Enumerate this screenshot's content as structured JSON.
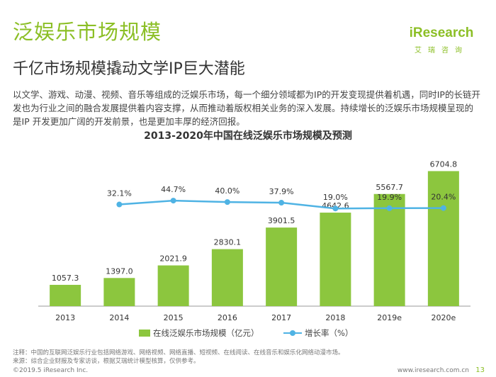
{
  "header": {
    "title": "泛娱乐市场规模",
    "subtitle": "千亿市场规模撬动文学IP巨大潜能",
    "logo_text": "iResearch",
    "logo_sub": "艾瑞咨询"
  },
  "intro_text": "以文学、游戏、动漫、视频、音乐等组成的泛娱乐市场，每一个细分领域都为IP的开发变现提供着机遇，同时IP的长链开发也为行业之间的融合发展提供着内容支撑，从而推动着版权相关业务的深入发展。持续增长的泛娱乐市场规模呈现的是IP 开发更加广阔的开发前景，也是更加丰厚的经济回报。",
  "chart_data": {
    "type": "bar",
    "title": "2013-2020年中国在线泛娱乐市场规模及预测",
    "categories": [
      "2013",
      "2014",
      "2015",
      "2016",
      "2017",
      "2018",
      "2019e",
      "2020e"
    ],
    "series": [
      {
        "name": "在线泛娱乐市场规模（亿元）",
        "type": "bar",
        "values": [
          1057.3,
          1397.0,
          2021.9,
          2830.1,
          3901.5,
          4642.6,
          5567.7,
          6704.8
        ],
        "labels": [
          "1057.3",
          "1397.0",
          "2021.9",
          "2830.1",
          "3901.5",
          "4642.6",
          "5567.7",
          "6704.8"
        ],
        "color": "#8cc63e"
      },
      {
        "name": "增长率（%）",
        "type": "line",
        "values": [
          32.1,
          44.7,
          40.0,
          37.9,
          19.0,
          19.9,
          20.4
        ],
        "x": [
          "2014",
          "2015",
          "2016",
          "2017",
          "2018",
          "2019e",
          "2020e"
        ],
        "labels": [
          "32.1%",
          "44.7%",
          "40.0%",
          "37.9%",
          "19.0%",
          "19.9%",
          "20.4%"
        ],
        "color": "#4fb3e4"
      }
    ],
    "bar_ylim": [
      0,
      7600
    ],
    "line_ylim": [
      -300,
      200
    ],
    "grid": false,
    "legend_position": "bottom"
  },
  "notes": {
    "note": "注释：中国的互联网泛娱乐行业包括网络游戏、网络视频、网络直播、短视频、在线阅读、在线音乐和娱乐化网络动漫市场。",
    "source": "来源：综合企业财报及专家访谈，根据艾瑞统计模型核算，仅供参考。"
  },
  "footer": {
    "copyright": "©2019.5 iResearch Inc.",
    "website": "www.iresearch.com.cn",
    "page": "13"
  }
}
